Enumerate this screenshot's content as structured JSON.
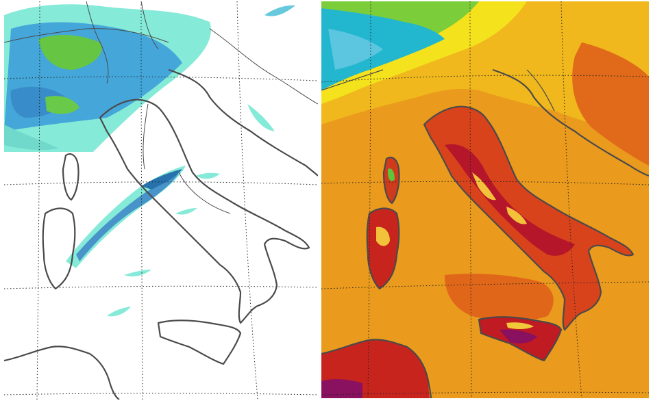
{
  "figure": {
    "panels": [
      {
        "id": "precipitation",
        "kind": "weather-map",
        "region": "Italy",
        "palette": {
          "light": "#6fe8d2",
          "mid": "#2f9bd6",
          "green": "#5cc63a",
          "dark": "#1b6fb0"
        }
      },
      {
        "id": "temperature",
        "kind": "weather-map",
        "region": "Italy",
        "palette": {
          "sea": "#e9961a",
          "hot": "#d9401a",
          "hotter": "#b01220",
          "peak": "#7a0f5a",
          "warm": "#f2c21a",
          "cool": "#6cc34a",
          "cold": "#18b9c8"
        }
      }
    ],
    "coastline_color": "#4a4a4a",
    "graticule": "dotted"
  }
}
